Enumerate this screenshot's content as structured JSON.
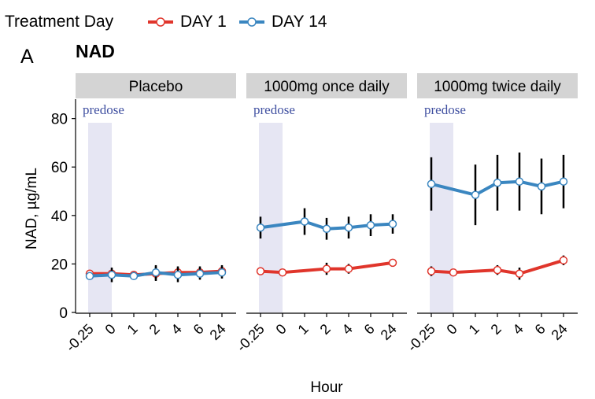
{
  "legend": {
    "title": "Treatment Day",
    "entries": [
      {
        "label": "DAY 1",
        "color": "#e0352b"
      },
      {
        "label": "DAY 14",
        "color": "#3a86c0"
      }
    ]
  },
  "panel_letter": "A",
  "chart_title": "NAD",
  "annotation": "predose",
  "colors": {
    "strip_bg": "#d4d4d4",
    "predose_band": "#e6e6f3",
    "predose_text": "#3f4fa0",
    "errorbar": "#000000"
  },
  "chart_data": {
    "type": "line",
    "title": "NAD",
    "xlabel": "Hour",
    "ylabel": "NAD, µg/mL",
    "ylim": [
      0,
      88
    ],
    "yticks": [
      0,
      20,
      40,
      60,
      80
    ],
    "categories": [
      "-0.25",
      "0",
      "1",
      "2",
      "4",
      "6",
      "24"
    ],
    "predose_range": [
      "-0.25",
      "0"
    ],
    "grid": false,
    "legend_position": "top-left",
    "panels": [
      {
        "name": "Placebo",
        "series": [
          {
            "name": "DAY 1",
            "values": [
              16,
              16,
              15.5,
              16,
              16.5,
              16.5,
              17
            ],
            "err": [
              1.5,
              1.5,
              1.5,
              3,
              2.5,
              2.5,
              2.5
            ]
          },
          {
            "name": "DAY 14",
            "values": [
              15,
              15.5,
              15,
              16.5,
              15.5,
              16,
              16.5
            ],
            "err": [
              1.5,
              3,
              1.5,
              3,
              3,
              2.5,
              2.5
            ]
          }
        ]
      },
      {
        "name": "1000mg once daily",
        "series": [
          {
            "name": "DAY 1",
            "values": [
              17,
              16.5,
              null,
              18,
              18,
              null,
              20.5
            ],
            "err": [
              1.5,
              1,
              null,
              2.5,
              2,
              null,
              1
            ]
          },
          {
            "name": "DAY 14",
            "values": [
              35,
              null,
              37.5,
              34.5,
              35,
              36,
              36.5
            ],
            "err": [
              4.5,
              null,
              5.5,
              4.5,
              4.5,
              4.5,
              4
            ]
          }
        ]
      },
      {
        "name": "1000mg twice daily",
        "series": [
          {
            "name": "DAY 1",
            "values": [
              17,
              16.5,
              null,
              17.5,
              16,
              null,
              21.5
            ],
            "err": [
              2,
              1,
              null,
              2,
              2.5,
              null,
              2
            ]
          },
          {
            "name": "DAY 14",
            "values": [
              53,
              null,
              48.5,
              53.5,
              54,
              52,
              54
            ],
            "err": [
              11,
              null,
              12.5,
              11.5,
              12,
              11.5,
              11
            ]
          }
        ]
      }
    ]
  }
}
